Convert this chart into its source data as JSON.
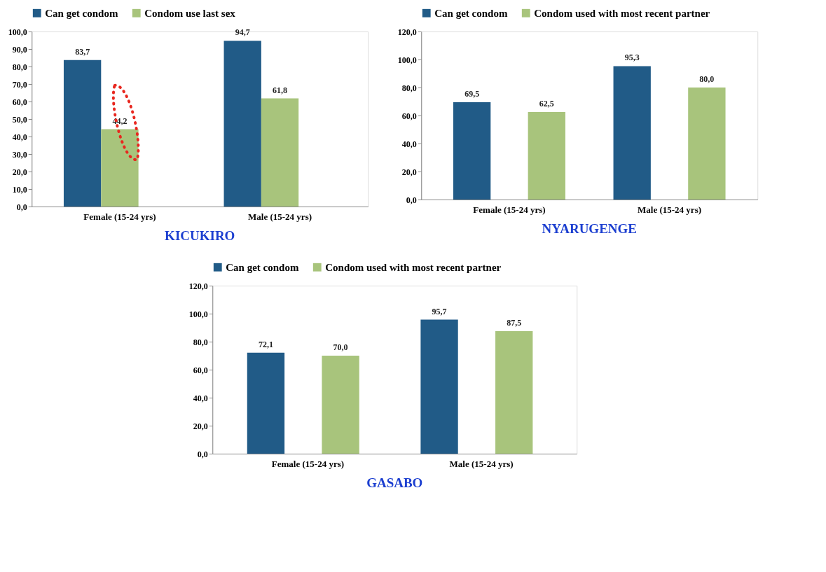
{
  "chart_data": [
    {
      "type": "bar",
      "title": "KICUKIRO",
      "categories": [
        "Female (15-24 yrs)",
        "Male  (15-24 yrs)"
      ],
      "series": [
        {
          "name": "Can get condom",
          "color": "#215b87",
          "values": [
            83.7,
            94.7
          ],
          "value_labels": [
            "83,7",
            "94,7"
          ]
        },
        {
          "name": "Condom use last sex",
          "color": "#a8c47c",
          "values": [
            44.2,
            61.8
          ],
          "value_labels": [
            "44,2",
            "61,8"
          ]
        }
      ],
      "ylim": [
        0,
        100
      ],
      "yticks": [
        {
          "value": 0,
          "label": "0,0"
        },
        {
          "value": 10,
          "label": "10,0"
        },
        {
          "value": 20,
          "label": "20,0"
        },
        {
          "value": 30,
          "label": "30,0"
        },
        {
          "value": 40,
          "label": "40,0"
        },
        {
          "value": 50,
          "label": "50,0"
        },
        {
          "value": 60,
          "label": "60,0"
        },
        {
          "value": 70,
          "label": "70,0"
        },
        {
          "value": 80,
          "label": "80,0"
        },
        {
          "value": 90,
          "label": "90,0"
        },
        {
          "value": 100,
          "label": "100,0"
        }
      ],
      "legend": "top",
      "grid": false
    },
    {
      "type": "bar",
      "title": "NYARUGENGE",
      "categories": [
        "Female (15-24 yrs)",
        "Male  (15-24 yrs)"
      ],
      "series": [
        {
          "name": "Can get condom",
          "color": "#215b87",
          "values": [
            69.5,
            95.3
          ],
          "value_labels": [
            "69,5",
            "95,3"
          ]
        },
        {
          "name": "Condom used with most recent partner",
          "color": "#a8c47c",
          "values": [
            62.5,
            80.0
          ],
          "value_labels": [
            "62,5",
            "80,0"
          ]
        }
      ],
      "ylim": [
        0,
        120
      ],
      "yticks": [
        {
          "value": 0,
          "label": "0,0"
        },
        {
          "value": 20,
          "label": "20,0"
        },
        {
          "value": 40,
          "label": "40,0"
        },
        {
          "value": 60,
          "label": "60,0"
        },
        {
          "value": 80,
          "label": "80,0"
        },
        {
          "value": 100,
          "label": "100,0"
        },
        {
          "value": 120,
          "label": "120,0"
        }
      ],
      "legend": "top",
      "grid": false
    },
    {
      "type": "bar",
      "title": "GASABO",
      "categories": [
        "Female (15-24 yrs)",
        "Male  (15-24 yrs)"
      ],
      "series": [
        {
          "name": "Can get condom",
          "color": "#215b87",
          "values": [
            72.1,
            95.7
          ],
          "value_labels": [
            "72,1",
            "95,7"
          ]
        },
        {
          "name": "Condom used with most recent partner",
          "color": "#a8c47c",
          "values": [
            70.0,
            87.5
          ],
          "value_labels": [
            "70,0",
            "87,5"
          ]
        }
      ],
      "ylim": [
        0,
        120
      ],
      "yticks": [
        {
          "value": 0,
          "label": "0,0"
        },
        {
          "value": 20,
          "label": "20,0"
        },
        {
          "value": 40,
          "label": "40,0"
        },
        {
          "value": 60,
          "label": "60,0"
        },
        {
          "value": 80,
          "label": "80,0"
        },
        {
          "value": 100,
          "label": "100,0"
        },
        {
          "value": 120,
          "label": "120,0"
        }
      ],
      "legend": "top",
      "grid": false
    }
  ]
}
